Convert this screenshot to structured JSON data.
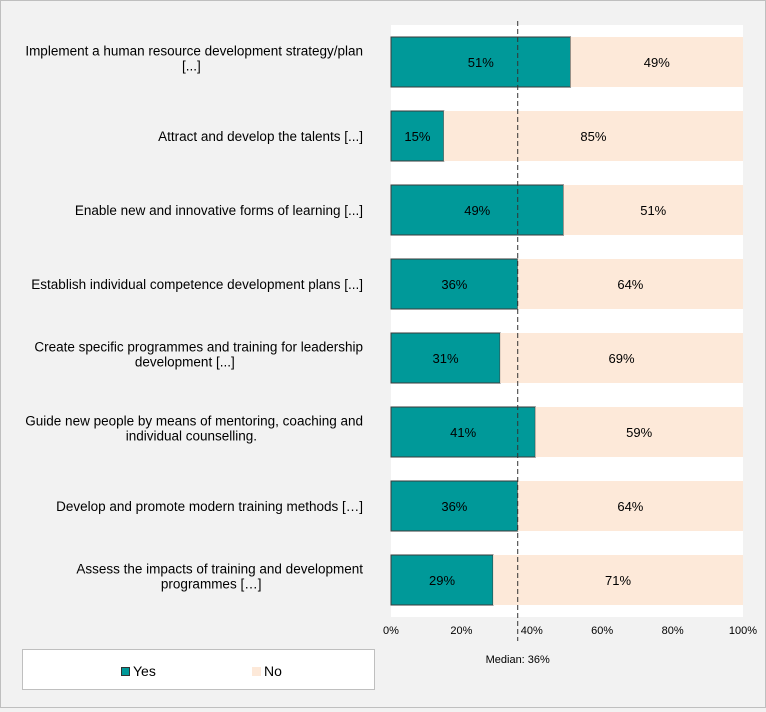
{
  "chart_data": {
    "type": "bar",
    "orientation": "horizontal",
    "stacked": true,
    "categories": [
      [
        "Implement a human resource development strategy/plan",
        "[...]"
      ],
      [
        "Attract and develop the talents [...]"
      ],
      [
        "Enable new and innovative forms of learning [...]"
      ],
      [
        "Establish individual competence development plans [...]"
      ],
      [
        "Create specific programmes and training for leadership",
        "development [...]"
      ],
      [
        "Guide new people by means of mentoring, coaching and",
        "individual counselling."
      ],
      [
        "Develop and promote modern training methods […]"
      ],
      [
        "Assess the impacts of training and development",
        "programmes […]"
      ]
    ],
    "series": [
      {
        "name": "Yes",
        "color": "#009999",
        "values": [
          51,
          15,
          49,
          36,
          31,
          41,
          36,
          29
        ]
      },
      {
        "name": "No",
        "color": "#fde9d9",
        "values": [
          49,
          85,
          51,
          64,
          69,
          59,
          64,
          71
        ]
      }
    ],
    "xlim": [
      0,
      100
    ],
    "xticks": [
      0,
      20,
      40,
      60,
      80,
      100
    ],
    "tick_suffix": "%",
    "median": {
      "value": 36,
      "label": "Median: 36%"
    },
    "legend_position": "bottom-left",
    "grid": false
  }
}
